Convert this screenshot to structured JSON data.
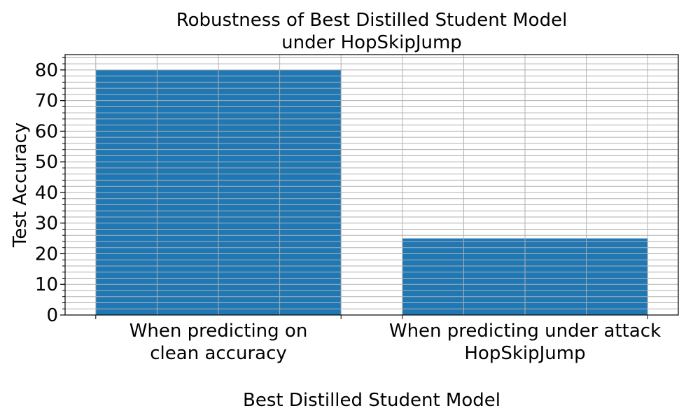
{
  "chart_data": {
    "type": "bar",
    "title": [
      "Robustness of Best Distilled Student Model",
      "under HopSkipJump"
    ],
    "xlabel": "Best Distilled Student Model",
    "ylabel": "Test Accuracy",
    "categories": [
      [
        "When predicting on",
        "clean accuracy"
      ],
      [
        "When predicting under attack",
        "HopSkipJump"
      ]
    ],
    "values": [
      80,
      25
    ],
    "ylim": [
      0,
      85
    ],
    "yticks": [
      0,
      10,
      20,
      30,
      40,
      50,
      60,
      70,
      80
    ],
    "minor_tick_step": 2,
    "grid": true,
    "bar_color": "#1f77b4",
    "grid_color": "#b0b0b0"
  }
}
